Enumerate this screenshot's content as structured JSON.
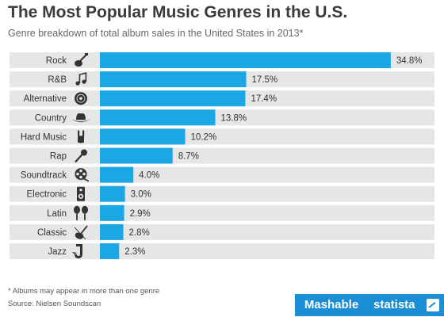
{
  "header": {
    "title": "The Most Popular Music Genres in the U.S.",
    "subtitle": "Genre breakdown of total album sales in the United States in 2013*"
  },
  "chart_data": {
    "type": "bar",
    "orientation": "horizontal",
    "title": "The Most Popular Music Genres in the U.S.",
    "subtitle": "Genre breakdown of total album sales in the United States in 2013*",
    "categories": [
      "Rock",
      "R&B",
      "Alternative",
      "Country",
      "Hard Music",
      "Rap",
      "Soundtrack",
      "Electronic",
      "Latin",
      "Classic",
      "Jazz"
    ],
    "values": [
      34.8,
      17.5,
      17.4,
      13.8,
      10.2,
      8.7,
      4.0,
      3.0,
      2.9,
      2.8,
      2.3
    ],
    "value_labels": [
      "34.8%",
      "17.5%",
      "17.4%",
      "13.8%",
      "10.2%",
      "8.7%",
      "4.0%",
      "3.0%",
      "2.9%",
      "2.8%",
      "2.3%"
    ],
    "icons": [
      "electric-guitar-icon",
      "music-note-icon",
      "vinyl-record-icon",
      "cowboy-hat-icon",
      "rock-hand-icon",
      "microphone-icon",
      "film-reel-icon",
      "speaker-icon",
      "maracas-icon",
      "violin-icon",
      "saxophone-icon"
    ],
    "xlim": [
      0,
      35
    ],
    "grid": false,
    "legend": "none",
    "bar_color": "#1ba7e4",
    "row_background": "#e6e6e6"
  },
  "footer": {
    "footnote": "* Albums may appear in more than one genre",
    "source": "Source: Nielsen Soundscan",
    "brand_left": "Mashable",
    "brand_right": "statista"
  },
  "colors": {
    "accent": "#1ba7e4",
    "brand": "#1c8ed6"
  }
}
